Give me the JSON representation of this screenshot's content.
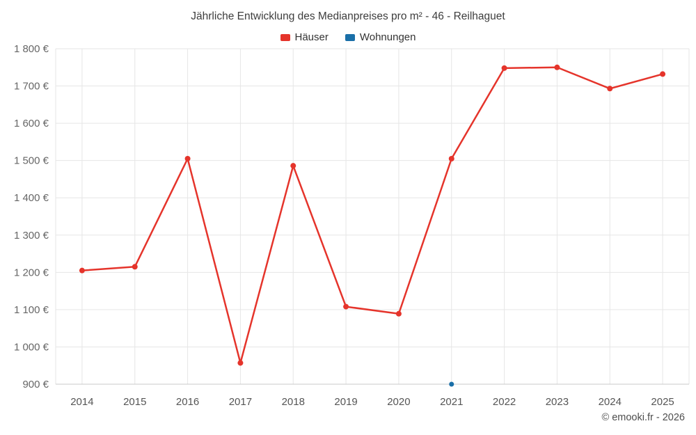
{
  "page": {
    "title": "Jährliche Entwicklung des Medianpreises pro m² - 46 - Reilhaguet",
    "copyright": "© emooki.fr - 2026"
  },
  "legend": {
    "items": [
      {
        "label": "Häuser",
        "color": "#e5342b"
      },
      {
        "label": "Wohnungen",
        "color": "#1a6fa8"
      }
    ]
  },
  "chart_data": {
    "type": "line",
    "title": "Jährliche Entwicklung des Medianpreises pro m² - 46 - Reilhaguet",
    "categories": [
      "2014",
      "2015",
      "2016",
      "2017",
      "2018",
      "2019",
      "2020",
      "2021",
      "2022",
      "2023",
      "2024",
      "2025"
    ],
    "series": [
      {
        "name": "Häuser",
        "color": "#e5342b",
        "values": [
          1205,
          1215,
          1505,
          957,
          1486,
          1108,
          1089,
          1505,
          1748,
          1750,
          1693,
          1732
        ]
      },
      {
        "name": "Wohnungen",
        "color": "#1a6fa8",
        "values": [
          null,
          null,
          null,
          null,
          null,
          null,
          null,
          900,
          null,
          null,
          null,
          null
        ]
      }
    ],
    "xlabel": "",
    "ylabel": "",
    "ylim": [
      900,
      1800
    ],
    "yticks": [
      {
        "value": 900,
        "label": "900 €"
      },
      {
        "value": 1000,
        "label": "1 000 €"
      },
      {
        "value": 1100,
        "label": "1 100 €"
      },
      {
        "value": 1200,
        "label": "1 200 €"
      },
      {
        "value": 1300,
        "label": "1 300 €"
      },
      {
        "value": 1400,
        "label": "1 400 €"
      },
      {
        "value": 1500,
        "label": "1 500 €"
      },
      {
        "value": 1600,
        "label": "1 600 €"
      },
      {
        "value": 1700,
        "label": "1 700 €"
      },
      {
        "value": 1800,
        "label": "1 800 €"
      }
    ],
    "grid": true,
    "legend_position": "top"
  }
}
